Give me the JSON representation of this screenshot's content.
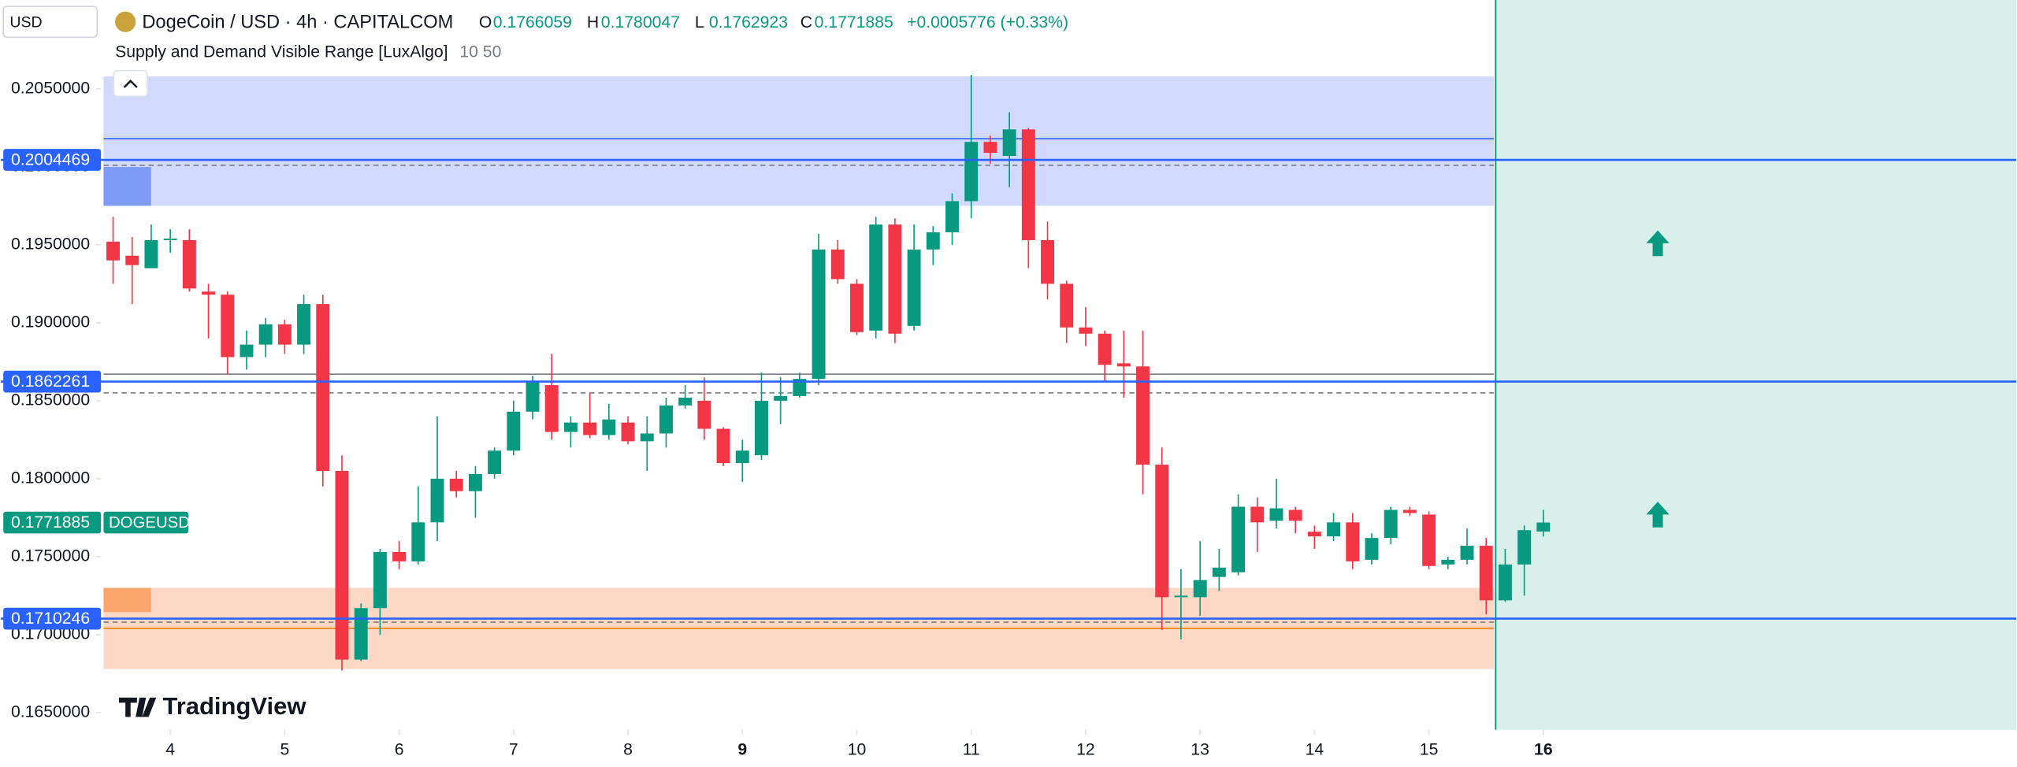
{
  "chart_data": {
    "type": "candlestick",
    "title": "DogeCoin / USD · 4h · CAPITALCOM",
    "currency": "USD",
    "ohlc_labels": [
      "O",
      "H",
      "L",
      "C"
    ],
    "change": "+0.0005776 (+0.33%)",
    "indicator": "Supply and Demand Visible Range [LuxAlgo]",
    "indicator_params": "10 50",
    "symbol_tag": "DOGEUSD",
    "logo": "TradingView",
    "up_color": "#089981",
    "down_color": "#f23645",
    "open": [
      0.1952,
      0.1943,
      0.1935,
      0.1953,
      0.1953,
      0.192,
      0.1918,
      0.1878,
      0.1886,
      0.1899,
      0.1886,
      0.1912,
      0.1805,
      0.1684,
      0.1717,
      0.1753,
      0.1747,
      0.1772,
      0.18,
      0.1792,
      0.1803,
      0.1818,
      0.1843,
      0.186,
      0.183,
      0.1836,
      0.1828,
      0.1836,
      0.1824,
      0.1829,
      0.1847,
      0.185,
      0.1832,
      0.181,
      0.1815,
      0.185,
      0.1853,
      0.1864,
      0.1947,
      0.1925,
      0.1895,
      0.1963,
      0.1898,
      0.1947,
      0.1958,
      0.1978,
      0.2016,
      0.2007,
      0.2024,
      0.1953,
      0.1925,
      0.1897,
      0.1893,
      0.1874,
      0.1872,
      0.1809,
      0.1724,
      0.1724,
      0.1737,
      0.174,
      0.1782,
      0.1773,
      0.178,
      0.1766,
      0.1763,
      0.1772,
      0.1748,
      0.1762,
      0.178,
      0.1777,
      0.1745,
      0.1748,
      0.1757,
      0.1722,
      0.1745,
      0.1766059
    ],
    "high": [
      0.1968,
      0.1955,
      0.1963,
      0.196,
      0.196,
      0.1925,
      0.192,
      0.1895,
      0.1903,
      0.1902,
      0.1918,
      0.1918,
      0.1815,
      0.172,
      0.1755,
      0.176,
      0.1795,
      0.184,
      0.1805,
      0.1808,
      0.182,
      0.185,
      0.1866,
      0.188,
      0.184,
      0.1855,
      0.1848,
      0.184,
      0.184,
      0.1852,
      0.186,
      0.1865,
      0.1833,
      0.1825,
      0.1868,
      0.1865,
      0.1868,
      0.1957,
      0.1953,
      0.1928,
      0.1968,
      0.1967,
      0.1963,
      0.1962,
      0.1983,
      0.2059,
      0.202,
      0.2035,
      0.2025,
      0.1965,
      0.1927,
      0.191,
      0.1895,
      0.1895,
      0.1895,
      0.182,
      0.1742,
      0.176,
      0.1755,
      0.179,
      0.1788,
      0.18,
      0.1782,
      0.177,
      0.1778,
      0.1778,
      0.1765,
      0.1782,
      0.1782,
      0.1779,
      0.175,
      0.1768,
      0.1762,
      0.1755,
      0.177,
      0.1780047
    ],
    "low": [
      0.1925,
      0.1912,
      0.1935,
      0.1945,
      0.192,
      0.189,
      0.1867,
      0.187,
      0.1878,
      0.188,
      0.188,
      0.1795,
      0.1677,
      0.1683,
      0.17,
      0.1742,
      0.1745,
      0.176,
      0.1788,
      0.1775,
      0.18,
      0.1815,
      0.1838,
      0.1825,
      0.182,
      0.1826,
      0.1825,
      0.1822,
      0.1805,
      0.182,
      0.1845,
      0.1825,
      0.1808,
      0.1798,
      0.1812,
      0.1835,
      0.1852,
      0.186,
      0.1925,
      0.1892,
      0.189,
      0.1887,
      0.1895,
      0.1937,
      0.195,
      0.1967,
      0.2002,
      0.1987,
      0.1935,
      0.1915,
      0.1887,
      0.1885,
      0.1862,
      0.1852,
      0.179,
      0.1703,
      0.1697,
      0.1712,
      0.1728,
      0.1738,
      0.1753,
      0.1768,
      0.1765,
      0.1755,
      0.176,
      0.1742,
      0.1745,
      0.1758,
      0.1776,
      0.1742,
      0.1742,
      0.1745,
      0.1713,
      0.1721,
      0.1725,
      0.1762923
    ],
    "close": [
      0.194,
      0.1937,
      0.1953,
      0.1954,
      0.1922,
      0.1918,
      0.1878,
      0.1886,
      0.1899,
      0.1886,
      0.1912,
      0.1805,
      0.1684,
      0.1717,
      0.1753,
      0.1747,
      0.1772,
      0.18,
      0.1792,
      0.1803,
      0.1818,
      0.1843,
      0.1862,
      0.183,
      0.1836,
      0.1828,
      0.1838,
      0.1824,
      0.1829,
      0.1847,
      0.1852,
      0.1832,
      0.181,
      0.1818,
      0.185,
      0.1853,
      0.1864,
      0.1947,
      0.1928,
      0.1894,
      0.1963,
      0.1893,
      0.1947,
      0.1958,
      0.1978,
      0.2016,
      0.2009,
      0.2024,
      0.1953,
      0.1925,
      0.1897,
      0.1893,
      0.1873,
      0.1872,
      0.1809,
      0.1724,
      0.1725,
      0.1735,
      0.1743,
      0.1782,
      0.1772,
      0.1781,
      0.1773,
      0.1763,
      0.1772,
      0.1747,
      0.1762,
      0.178,
      0.1778,
      0.1744,
      0.1748,
      0.1757,
      0.1722,
      0.1745,
      0.1767,
      0.1771885
    ],
    "xlim": [
      -0.5,
      99.8
    ],
    "xticks": [
      {
        "value": 3,
        "label": "4"
      },
      {
        "value": 9,
        "label": "5"
      },
      {
        "value": 15,
        "label": "6"
      },
      {
        "value": 21,
        "label": "7"
      },
      {
        "value": 27,
        "label": "8"
      },
      {
        "value": 33,
        "label": "9",
        "bold": true
      },
      {
        "value": 39,
        "label": "10"
      },
      {
        "value": 45,
        "label": "11"
      },
      {
        "value": 51,
        "label": "12"
      },
      {
        "value": 57,
        "label": "13"
      },
      {
        "value": 63,
        "label": "14"
      },
      {
        "value": 69,
        "label": "15"
      },
      {
        "value": 75,
        "label": "16",
        "bold": true
      }
    ],
    "ylim": [
      0.1639,
      0.2107
    ],
    "yticks": [
      {
        "value": 0.205,
        "label": "0.2050000"
      },
      {
        "value": 0.2,
        "label": "0.2000000"
      },
      {
        "value": 0.195,
        "label": "0.1950000"
      },
      {
        "value": 0.19,
        "label": "0.1900000"
      },
      {
        "value": 0.185,
        "label": "0.1850000"
      },
      {
        "value": 0.18,
        "label": "0.1800000"
      },
      {
        "value": 0.175,
        "label": "0.1750000"
      },
      {
        "value": 0.17,
        "label": "0.1700000"
      },
      {
        "value": 0.165,
        "label": "0.1650000"
      }
    ],
    "price_lines": [
      0.2004469,
      0.1862261,
      0.1710246
    ],
    "price_line_color": "#2962ff",
    "zone_end": 72,
    "zones": [
      {
        "top": 0.2058,
        "bottom": 0.1975,
        "line": 0.2018,
        "dashed": 0.2001,
        "fill": "#d1dafd",
        "line_color": "#2962ff",
        "block_color": "#7e9cf7"
      },
      {
        "top": 0.173,
        "bottom": 0.1678,
        "line": 0.1704,
        "dashed": 0.1708,
        "fill": "#fdd8c4",
        "line_color": "#f57c00",
        "block_color": "#fca66e"
      }
    ],
    "equilibrium": {
      "line": 0.1867,
      "dashed": 0.1855,
      "color": "#787b86"
    },
    "future_start": 72.5,
    "future_fill": "#d8efea",
    "signals": [
      {
        "x": 81,
        "y": 0.1951
      },
      {
        "x": 81,
        "y": 0.1777
      }
    ]
  }
}
